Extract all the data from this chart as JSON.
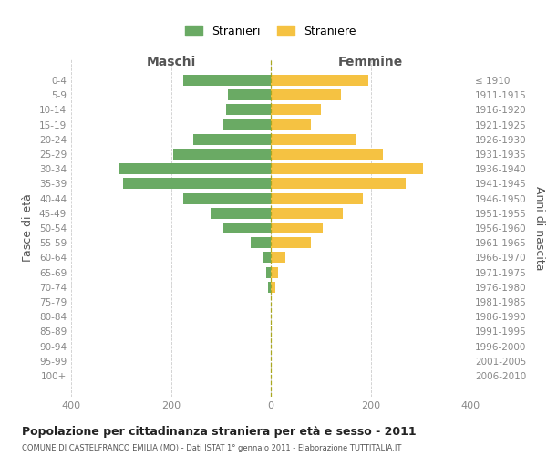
{
  "age_groups": [
    "0-4",
    "5-9",
    "10-14",
    "15-19",
    "20-24",
    "25-29",
    "30-34",
    "35-39",
    "40-44",
    "45-49",
    "50-54",
    "55-59",
    "60-64",
    "65-69",
    "70-74",
    "75-79",
    "80-84",
    "85-89",
    "90-94",
    "95-99",
    "100+"
  ],
  "birth_years": [
    "2006-2010",
    "2001-2005",
    "1996-2000",
    "1991-1995",
    "1986-1990",
    "1981-1985",
    "1976-1980",
    "1971-1975",
    "1966-1970",
    "1961-1965",
    "1956-1960",
    "1951-1955",
    "1946-1950",
    "1941-1945",
    "1936-1940",
    "1931-1935",
    "1926-1930",
    "1921-1925",
    "1916-1920",
    "1911-1915",
    "≤ 1910"
  ],
  "maschi": [
    175,
    85,
    90,
    95,
    155,
    195,
    305,
    295,
    175,
    120,
    95,
    40,
    15,
    10,
    5,
    0,
    0,
    0,
    0,
    0,
    0
  ],
  "femmine": [
    195,
    140,
    100,
    80,
    170,
    225,
    305,
    270,
    185,
    145,
    105,
    80,
    30,
    15,
    10,
    0,
    0,
    0,
    0,
    0,
    0
  ],
  "maschi_color": "#6aaa64",
  "femmine_color": "#f5c242",
  "background_color": "#ffffff",
  "grid_color": "#cccccc",
  "title": "Popolazione per cittadinanza straniera per età e sesso - 2011",
  "subtitle": "COMUNE DI CASTELFRANCO EMILIA (MO) - Dati ISTAT 1° gennaio 2011 - Elaborazione TUTTITALIA.IT",
  "xlabel_left": "Maschi",
  "xlabel_right": "Femmine",
  "ylabel_left": "Fasce di età",
  "ylabel_right": "Anni di nascita",
  "legend_maschi": "Stranieri",
  "legend_femmine": "Straniere",
  "xlim": 400
}
